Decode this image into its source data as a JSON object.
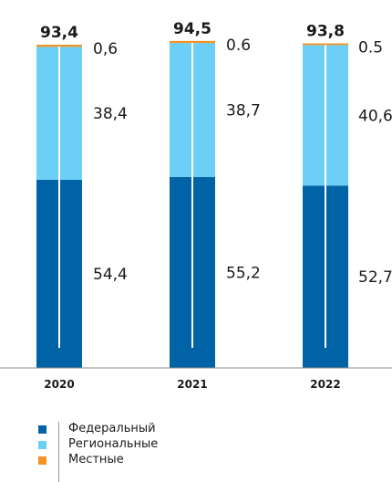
{
  "colors": {
    "federal": "#0063a6",
    "regional": "#6ccff6",
    "local": "#f39325",
    "axis": "#888888",
    "split": "#ffffff"
  },
  "legend": {
    "items": [
      {
        "label": "Федеральный",
        "color": "#0063a6"
      },
      {
        "label": "Региональные",
        "color": "#6ccff6"
      },
      {
        "label": "Местные",
        "color": "#f39325"
      }
    ]
  },
  "chart_data": {
    "type": "bar",
    "stacked": true,
    "categories": [
      "2020",
      "2021",
      "2022"
    ],
    "series": [
      {
        "name": "Федеральный",
        "values": [
          54.4,
          55.2,
          52.7
        ],
        "labels": [
          "54,4",
          "55,2",
          "52,7"
        ]
      },
      {
        "name": "Региональные",
        "values": [
          38.4,
          38.7,
          40.6
        ],
        "labels": [
          "38,4",
          "38,7",
          "40,6"
        ]
      },
      {
        "name": "Местные",
        "values": [
          0.6,
          0.6,
          0.5
        ],
        "labels": [
          "0,6",
          "0.6",
          "0.5"
        ]
      }
    ],
    "totals": [
      93.4,
      94.5,
      93.8
    ],
    "total_labels": [
      "93,4",
      "94,5",
      "93,8"
    ],
    "ylim": [
      0,
      95
    ],
    "legend_position": "bottom-left",
    "grid": false
  }
}
